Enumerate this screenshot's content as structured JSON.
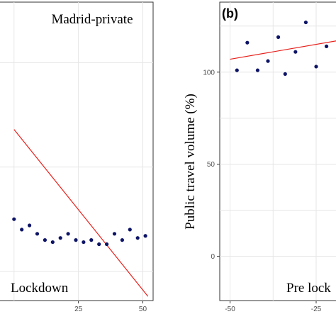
{
  "chart_data": [
    {
      "type": "scatter",
      "title": "Madrid-private",
      "annotation": "Lockdown",
      "x_ticks": [
        "25",
        "50"
      ],
      "xlim": [
        -6,
        54
      ],
      "ylim": [
        6,
        149
      ],
      "grid": true,
      "series": [
        {
          "x": [
            0,
            3,
            6,
            9,
            12,
            15,
            18,
            21,
            24,
            27,
            30,
            33,
            36,
            39,
            42,
            45,
            48,
            51
          ],
          "y": [
            45,
            40,
            42,
            38,
            35,
            34,
            36,
            38,
            35,
            34,
            35,
            33,
            33,
            38,
            35,
            40,
            36,
            37
          ]
        },
        {
          "line": "fit",
          "x": [
            0,
            52
          ],
          "y": [
            88,
            8
          ]
        }
      ],
      "colors": {
        "points": "#0d1466",
        "fit": "#e8201b"
      }
    },
    {
      "type": "scatter",
      "panel_label": "(b)",
      "annotation": "Pre lock",
      "ylabel": "Public travel volume (%)",
      "y_ticks": [
        "0",
        "50",
        "100"
      ],
      "x_ticks": [
        "-50",
        "-25"
      ],
      "xlim": [
        -53,
        -18
      ],
      "ylim": [
        -24,
        138
      ],
      "grid": true,
      "series": [
        {
          "x": [
            -48,
            -45,
            -42,
            -39,
            -36,
            -34,
            -31,
            -28,
            -25,
            -22
          ],
          "y": [
            101,
            116,
            101,
            106,
            119,
            99,
            111,
            127,
            103,
            114
          ]
        },
        {
          "line": "fit",
          "x": [
            -50,
            -19
          ],
          "y": [
            107,
            117
          ]
        }
      ],
      "colors": {
        "points": "#0d1466",
        "fit": "#e8201b"
      }
    }
  ]
}
